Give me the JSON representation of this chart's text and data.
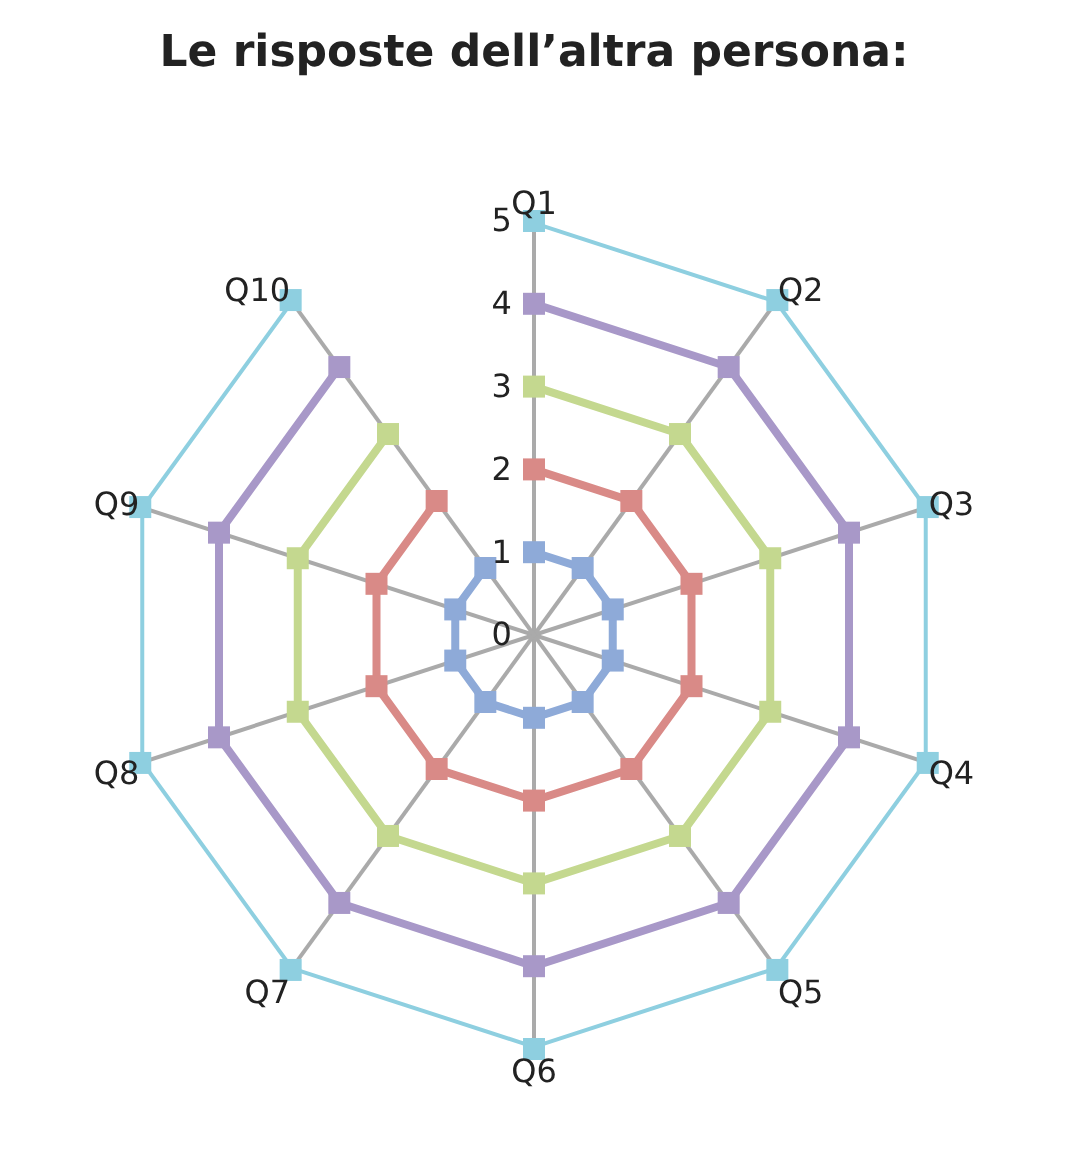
{
  "chart_data": {
    "type": "radar",
    "title": "Le risposte dell’altra persona:",
    "categories": [
      "Q1",
      "Q2",
      "Q3",
      "Q4",
      "Q5",
      "Q6",
      "Q7",
      "Q8",
      "Q9",
      "Q10"
    ],
    "series": [
      {
        "color": "#8eaad8",
        "values": [
          1,
          1,
          1,
          1,
          1,
          1,
          1,
          1,
          1,
          1
        ]
      },
      {
        "color": "#d98a87",
        "values": [
          2,
          2,
          2,
          2,
          2,
          2,
          2,
          2,
          2,
          2
        ]
      },
      {
        "color": "#c4d88f",
        "values": [
          3,
          3,
          3,
          3,
          3,
          3,
          3,
          3,
          3,
          3
        ]
      },
      {
        "color": "#a898c8",
        "values": [
          4,
          4,
          4,
          4,
          4,
          4,
          4,
          4,
          4,
          4
        ]
      },
      {
        "color": "#8ecfe0",
        "values": [
          5,
          5,
          5,
          5,
          5,
          5,
          5,
          5,
          5,
          5
        ]
      }
    ],
    "ylim": [
      0,
      5
    ],
    "yticks": [
      0,
      1,
      2,
      3,
      4,
      5
    ],
    "grid": true,
    "marker": "square",
    "line_style": "solid"
  }
}
